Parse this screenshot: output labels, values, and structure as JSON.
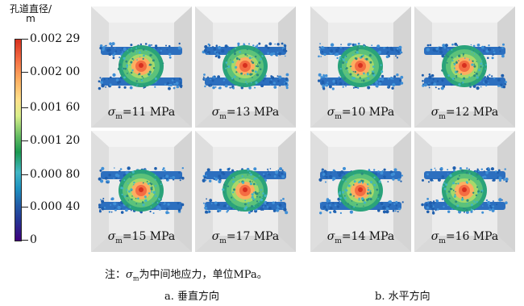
{
  "legend": {
    "title_line1": "孔道直径/",
    "title_line2": "m",
    "ticks": [
      "0.002 29",
      "0.002 00",
      "0.001 60",
      "0.001 20",
      "0.000 80",
      "0.000 40",
      "0"
    ]
  },
  "panels": [
    {
      "sigma": "σ",
      "sub": "m",
      "value": "=11 MPa"
    },
    {
      "sigma": "σ",
      "sub": "m",
      "value": "=13 MPa"
    },
    {
      "sigma": "σ",
      "sub": "m",
      "value": "=15 MPa"
    },
    {
      "sigma": "σ",
      "sub": "m",
      "value": "=17 MPa"
    },
    {
      "sigma": "σ",
      "sub": "m",
      "value": "=10 MPa"
    },
    {
      "sigma": "σ",
      "sub": "m",
      "value": "=12 MPa"
    },
    {
      "sigma": "σ",
      "sub": "m",
      "value": "=14 MPa"
    },
    {
      "sigma": "σ",
      "sub": "m",
      "value": "=16 MPa"
    }
  ],
  "note": {
    "prefix": "注：",
    "sigma": "σ",
    "sub": "m",
    "suffix": "为中间地应力，单位MPa。"
  },
  "group_a": "a. 垂直方向",
  "group_b": "b. 水平方向"
}
